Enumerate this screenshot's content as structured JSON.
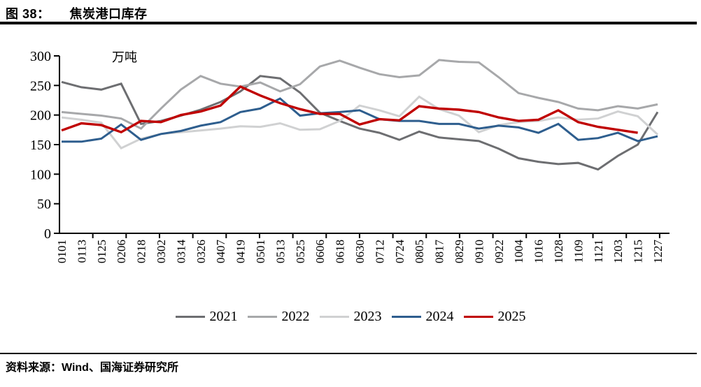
{
  "figure": {
    "label": "图 38：",
    "title": "焦炭港口库存"
  },
  "chart_data": {
    "type": "line",
    "title": "焦炭港口库存",
    "unit_label": "万吨",
    "grid": false,
    "legend_position": "bottom",
    "ylim": [
      0,
      300
    ],
    "yticks": [
      0,
      50,
      100,
      150,
      200,
      250,
      300
    ],
    "categories": [
      "0101",
      "0113",
      "0125",
      "0206",
      "0218",
      "0302",
      "0314",
      "0326",
      "0407",
      "0419",
      "0501",
      "0513",
      "0525",
      "0606",
      "0618",
      "0630",
      "0712",
      "0724",
      "0805",
      "0817",
      "0829",
      "0910",
      "0922",
      "1004",
      "1016",
      "1028",
      "1109",
      "1121",
      "1203",
      "1215",
      "1227"
    ],
    "series": [
      {
        "name": "2021",
        "color": "#6d6e71",
        "values": [
          256,
          247,
          243,
          253,
          185,
          190,
          199,
          209,
          222,
          240,
          266,
          262,
          238,
          204,
          190,
          177,
          170,
          158,
          172,
          162,
          159,
          156,
          143,
          127,
          121,
          117,
          119,
          108,
          131,
          150,
          205
        ]
      },
      {
        "name": "2022",
        "color": "#a7a8aa",
        "values": [
          205,
          202,
          199,
          194,
          177,
          211,
          243,
          266,
          253,
          248,
          255,
          240,
          252,
          282,
          292,
          280,
          269,
          264,
          267,
          293,
          290,
          289,
          264,
          237,
          229,
          222,
          211,
          208,
          215,
          211,
          218
        ]
      },
      {
        "name": "2023",
        "color": "#d0d1d2",
        "values": [
          196,
          192,
          187,
          144,
          160,
          168,
          171,
          174,
          177,
          181,
          180,
          186,
          175,
          176,
          190,
          216,
          208,
          198,
          231,
          210,
          199,
          171,
          183,
          188,
          190,
          196,
          192,
          194,
          206,
          198,
          167
        ]
      },
      {
        "name": "2024",
        "color": "#2e5e8e",
        "values": [
          155,
          155,
          160,
          184,
          158,
          168,
          173,
          182,
          188,
          205,
          211,
          228,
          199,
          203,
          205,
          208,
          193,
          190,
          190,
          185,
          185,
          177,
          182,
          179,
          170,
          185,
          158,
          161,
          170,
          156,
          164
        ]
      },
      {
        "name": "2025",
        "color": "#c00000",
        "values": [
          174,
          186,
          183,
          171,
          190,
          188,
          200,
          206,
          216,
          248,
          233,
          220,
          210,
          202,
          202,
          184,
          193,
          191,
          215,
          211,
          209,
          205,
          196,
          190,
          192,
          208,
          188,
          180,
          175,
          170,
          null
        ]
      }
    ]
  },
  "footer": {
    "source_label": "资料来源：Wind、国海证券研究所"
  }
}
